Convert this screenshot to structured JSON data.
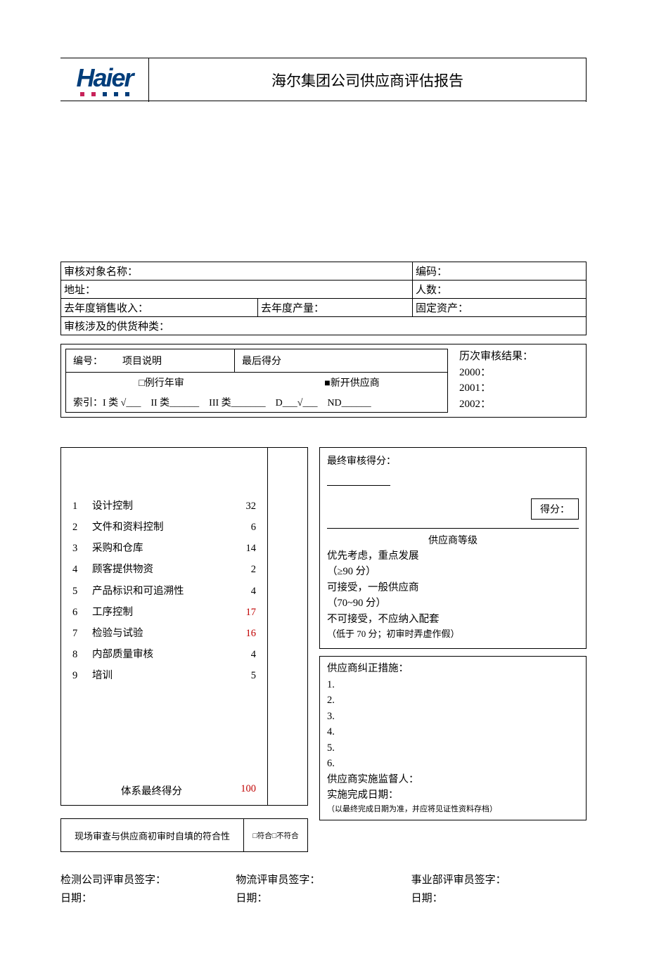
{
  "colors": {
    "text": "#000000",
    "logo_blue": "#003d7a",
    "logo_pink": "#c8235a",
    "highlight_red": "#c00000",
    "border": "#000000",
    "background": "#ffffff"
  },
  "logo": {
    "text": "Haier"
  },
  "title": "海尔集团公司供应商评估报告",
  "info": {
    "name_label": "审核对象名称：",
    "code_label": "编码：",
    "addr_label": "地址：",
    "people_label": "人数：",
    "revenue_label": "去年度销售收入：",
    "production_label": "去年度产量：",
    "asset_label": "固定资产：",
    "supply_label": "审核涉及的供货种类："
  },
  "mid": {
    "number_label": "编号：",
    "item_label": "项目说明",
    "final_score_label": "最后得分",
    "routine_label": "□例行年审",
    "new_supplier_label": "■新开供应商",
    "index_line": "索引：I 类 √___　II 类______　III 类_______　D___√___　ND______",
    "history_label": "历次审核结果：",
    "y2000": "2000：",
    "y2001": "2001：",
    "y2002": "2002："
  },
  "scores": {
    "items": [
      {
        "n": "1",
        "name": "设计控制",
        "val": "32",
        "red": false
      },
      {
        "n": "2",
        "name": "文件和资料控制",
        "val": "6",
        "red": false
      },
      {
        "n": "3",
        "name": "采购和仓库",
        "val": "14",
        "red": false
      },
      {
        "n": "4",
        "name": "顾客提供物资",
        "val": "2",
        "red": false
      },
      {
        "n": "5",
        "name": "产品标识和可追溯性",
        "val": "4",
        "red": false
      },
      {
        "n": "6",
        "name": "工序控制",
        "val": "17",
        "red": true
      },
      {
        "n": "7",
        "name": "检验与试验",
        "val": "16",
        "red": true
      },
      {
        "n": "8",
        "name": "内部质量审核",
        "val": "4",
        "red": false
      },
      {
        "n": "9",
        "name": "培训",
        "val": "5",
        "red": false
      }
    ],
    "total_label": "体系最终得分",
    "total_val": "100"
  },
  "conformity": {
    "label": "现场审查与供应商初审时自填的符合性",
    "options": "□符合□不符合"
  },
  "final": {
    "title": "最终审核得分：",
    "score_label": "得分：",
    "grade_title": "供应商等级",
    "grade1a": "优先考虑，重点发展",
    "grade1b": "（≥90 分）",
    "grade2a": "可接受，一般供应商",
    "grade2b": "（70~90 分）",
    "grade3a": "不可接受，不应纳入配套",
    "grade3b": "（低于 70 分；初审时弄虚作假）"
  },
  "corrective": {
    "title": "供应商纠正措施：",
    "lines": [
      "1.",
      "2.",
      "3.",
      "4.",
      "5.",
      "6."
    ],
    "supervisor": "供应商实施监督人：",
    "date": "实施完成日期：",
    "note": "（以最终完成日期为准，并应将见证性资料存档）"
  },
  "signatures": {
    "s1": "检测公司评审员签字：",
    "s2": "物流评审员签字：",
    "s3": "事业部评审员签字：",
    "date": "日期："
  }
}
